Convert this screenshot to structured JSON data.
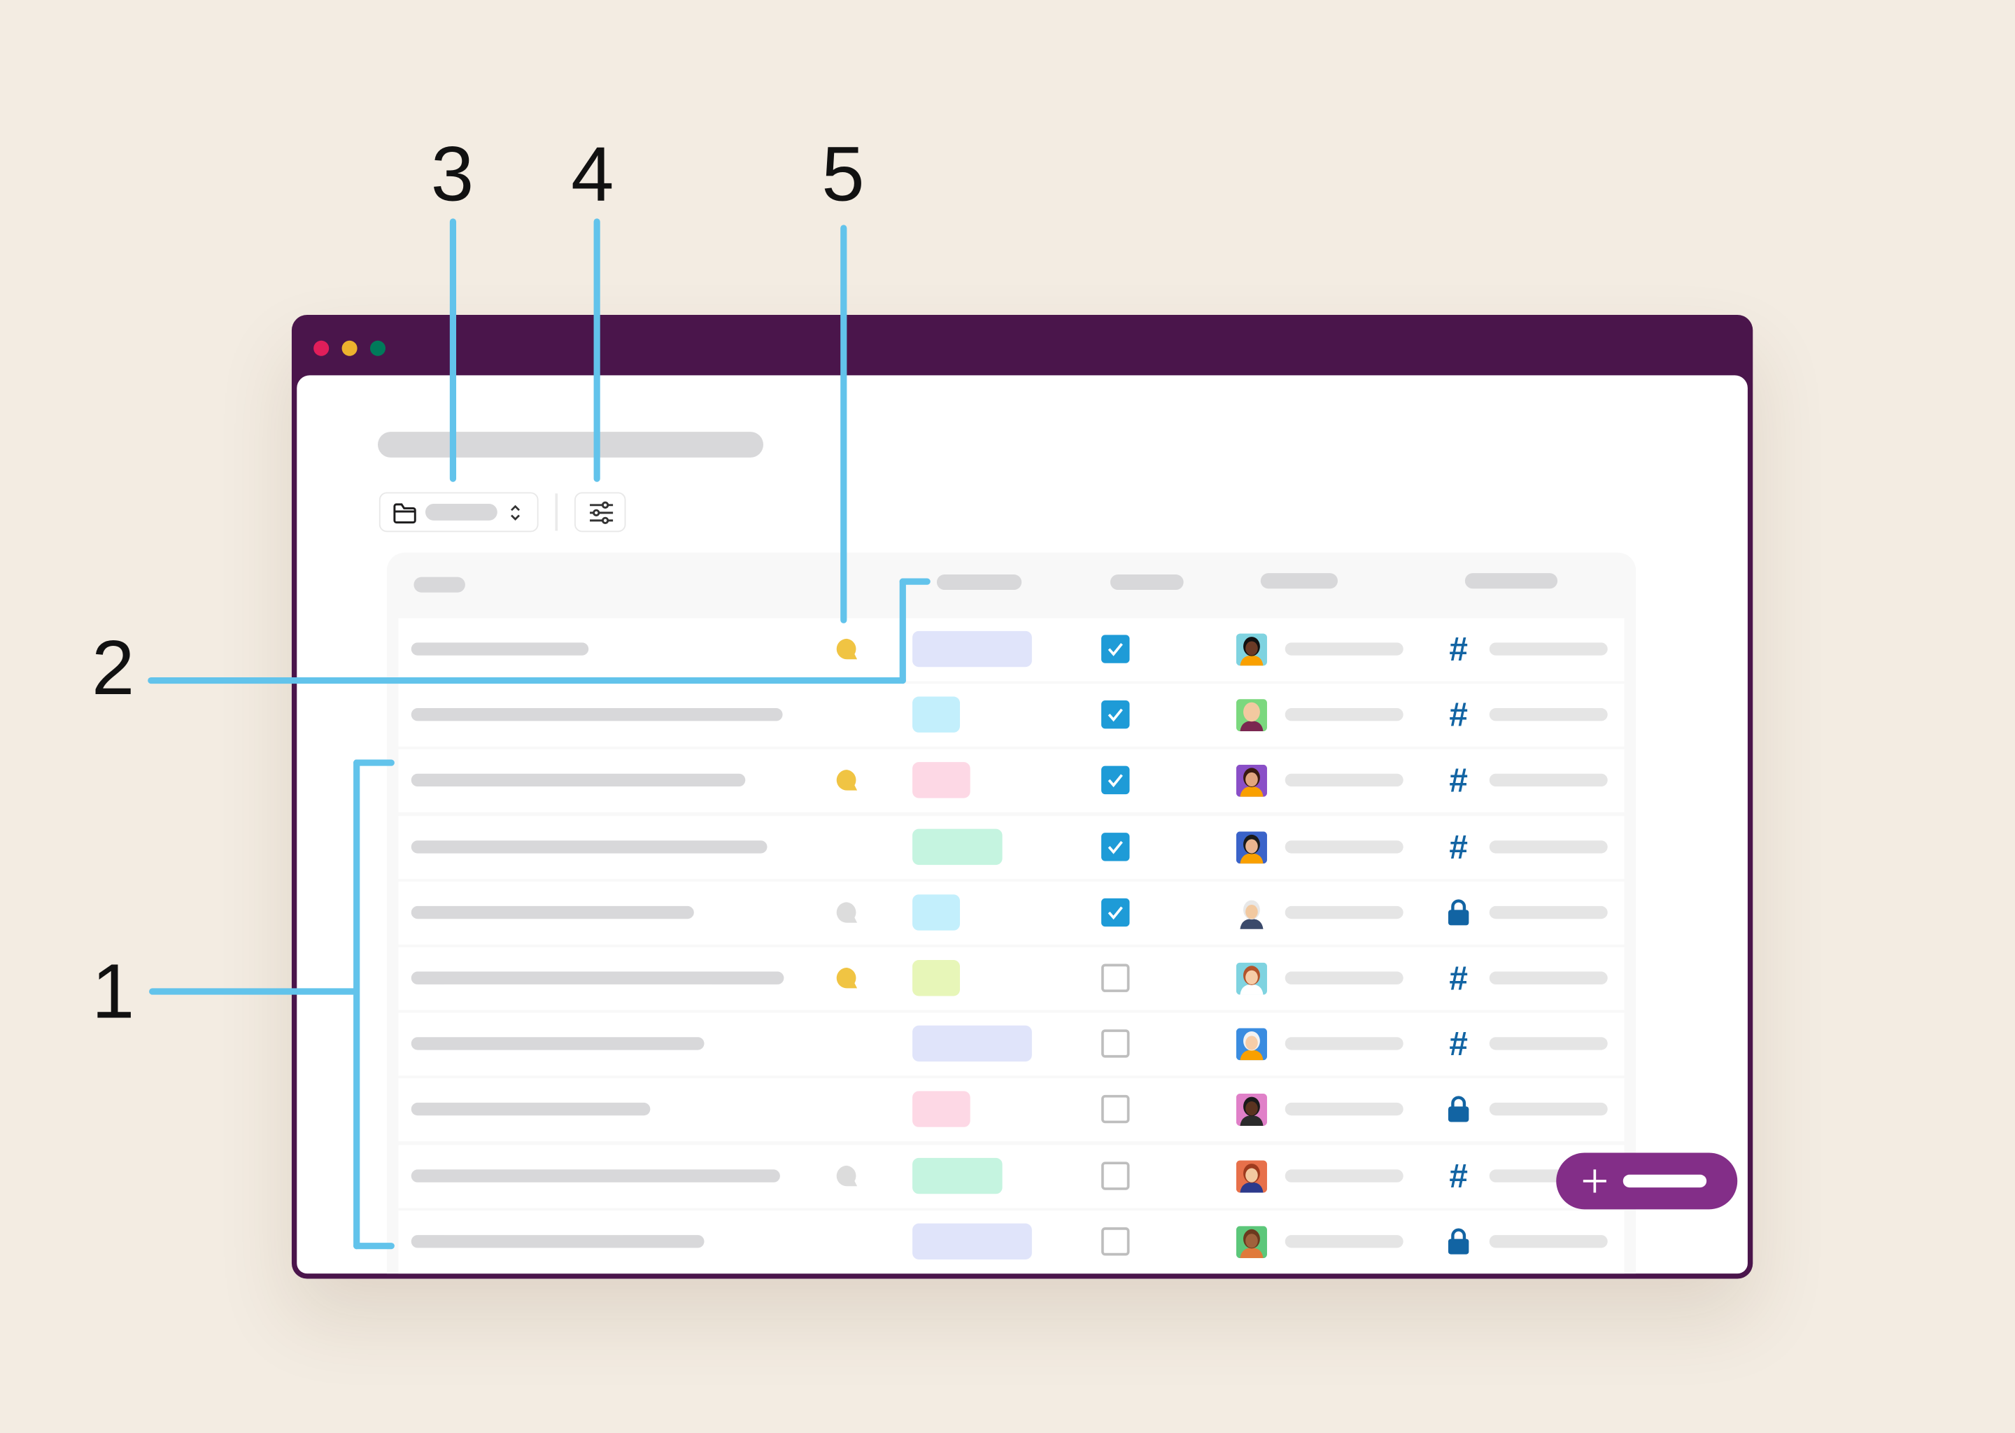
{
  "annotations": {
    "n1": "1",
    "n2": "2",
    "n3": "3",
    "n4": "4",
    "n5": "5"
  },
  "colors": {
    "window_frame": "#4A154B",
    "callout_line": "#62C3EB",
    "fab": "#832E88",
    "checkbox_checked": "#1E9BD7",
    "channel_icon": "#1264A3",
    "traffic_lights": [
      "#E01E5A",
      "#ECB22E",
      "#007A5A"
    ]
  },
  "toolbar": {
    "folder_icon": "folder-icon",
    "sort_icon": "chevron-up-down-icon",
    "filter_icon": "sliders-icon"
  },
  "fab": {
    "icon": "plus-icon"
  },
  "rows": [
    {
      "comment": "yellow",
      "tag_color": "#E0E4FA",
      "checked": true,
      "avatar": {
        "bg": "#7FD3E0",
        "skin": "#6B3A26",
        "hair": "#111",
        "shirt": "#F9A000"
      },
      "channel": "hash"
    },
    {
      "comment": "none",
      "tag_color": "#C3EFFC",
      "checked": true,
      "avatar": {
        "bg": "#7BD87E",
        "skin": "#F2C9A0",
        "hair": "#F2C9A0",
        "shirt": "#7B2650"
      },
      "channel": "hash"
    },
    {
      "comment": "yellow",
      "tag_color": "#FDD8E5",
      "checked": true,
      "avatar": {
        "bg": "#8A4FC7",
        "skin": "#E2A57E",
        "hair": "#3A1A10",
        "shirt": "#F9A000"
      },
      "channel": "hash"
    },
    {
      "comment": "none",
      "tag_color": "#C5F4E0",
      "checked": true,
      "avatar": {
        "bg": "#3A63C9",
        "skin": "#E9B48F",
        "hair": "#1A1A1A",
        "shirt": "#F9A000"
      },
      "channel": "hash"
    },
    {
      "comment": "gray",
      "tag_color": "#C3EFFC",
      "checked": true,
      "avatar": {
        "bg": "#FFFFFF",
        "skin": "#F2C9A0",
        "hair": "#E8E8E8",
        "shirt": "#3B4A6B"
      },
      "channel": "lock"
    },
    {
      "comment": "yellow",
      "tag_color": "#E7F6B8",
      "checked": false,
      "avatar": {
        "bg": "#7FD3E0",
        "skin": "#F6CDA8",
        "hair": "#B4542B",
        "shirt": "#FFFFFF"
      },
      "channel": "hash"
    },
    {
      "comment": "none",
      "tag_color": "#E0E4FA",
      "checked": false,
      "avatar": {
        "bg": "#3A8CE0",
        "skin": "#F6CDA8",
        "hair": "#F2F2F2",
        "shirt": "#F9A000"
      },
      "channel": "hash"
    },
    {
      "comment": "none",
      "tag_color": "#FDD8E5",
      "checked": false,
      "avatar": {
        "bg": "#E080C8",
        "skin": "#5A3320",
        "hair": "#1A1A1A",
        "shirt": "#2B2B2B"
      },
      "channel": "lock"
    },
    {
      "comment": "gray",
      "tag_color": "#C5F4E0",
      "checked": false,
      "avatar": {
        "bg": "#E7704A",
        "skin": "#F2C9A0",
        "hair": "#9E3B1E",
        "shirt": "#2D3A8C"
      },
      "channel": "hash"
    },
    {
      "comment": "none",
      "tag_color": "#E0E4FA",
      "checked": false,
      "avatar": {
        "bg": "#5CC77A",
        "skin": "#A0623C",
        "hair": "#6B3A1E",
        "shirt": "#E07A3A"
      },
      "channel": "lock"
    }
  ]
}
